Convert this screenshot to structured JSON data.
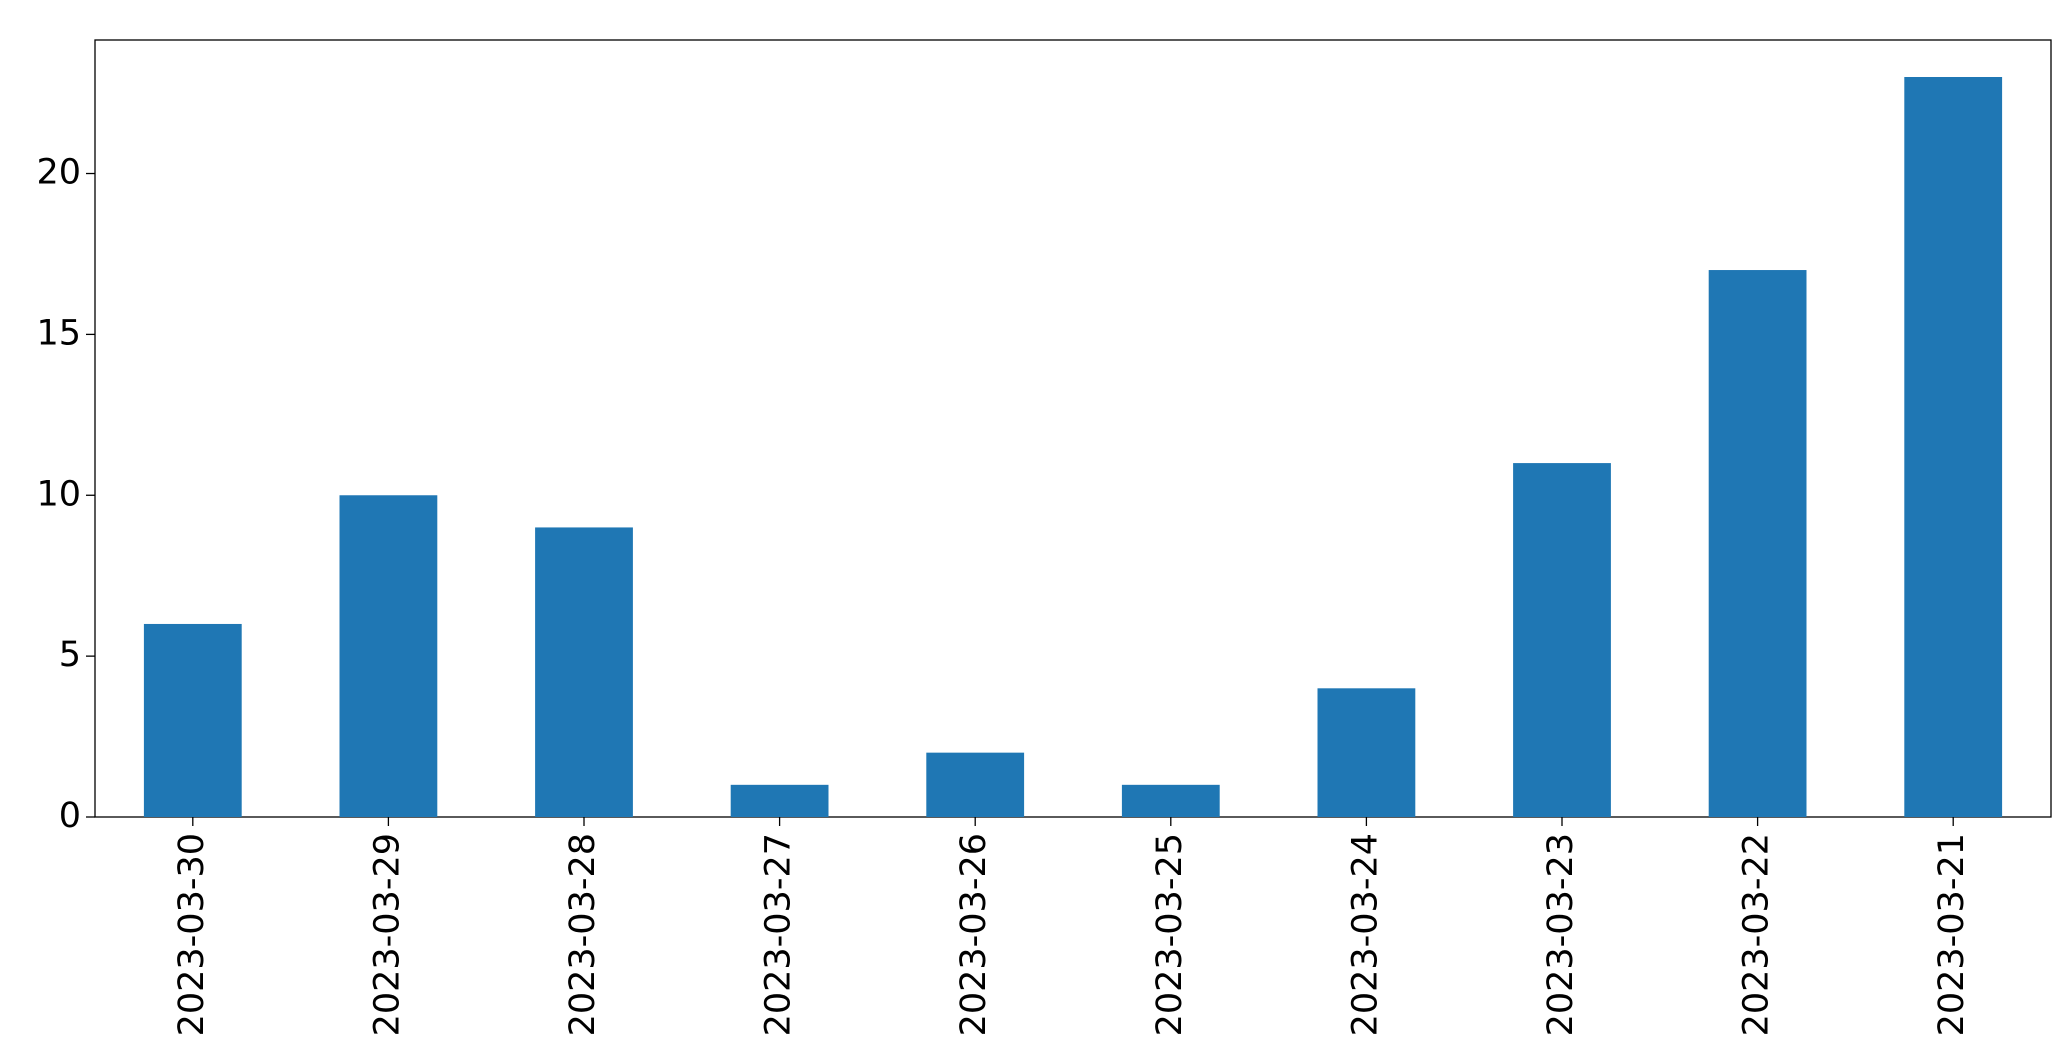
{
  "chart_data": {
    "type": "bar",
    "categories": [
      "2023-03-30",
      "2023-03-29",
      "2023-03-28",
      "2023-03-27",
      "2023-03-26",
      "2023-03-25",
      "2023-03-24",
      "2023-03-23",
      "2023-03-22",
      "2023-03-21"
    ],
    "values": [
      6,
      10,
      9,
      1,
      2,
      1,
      4,
      11,
      17,
      23
    ],
    "color": "#1f77b4",
    "ylim": [
      0,
      24.15
    ],
    "yticks": [
      0,
      5,
      10,
      15,
      20
    ],
    "grid": false
  }
}
